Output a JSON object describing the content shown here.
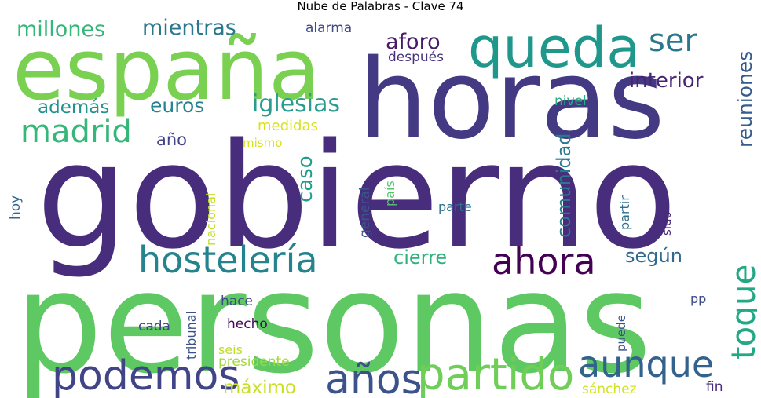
{
  "title": "Nube de Palabras - Clave 74",
  "words": [
    {
      "text": "gobierno",
      "color": "#472d7b"
    },
    {
      "text": "personas",
      "color": "#5ec962"
    },
    {
      "text": "horas",
      "color": "#443983"
    },
    {
      "text": "españa",
      "color": "#7ad151"
    },
    {
      "text": "queda",
      "color": "#1f988b"
    },
    {
      "text": "hostelería",
      "color": "#25838e"
    },
    {
      "text": "podemos",
      "color": "#414487"
    },
    {
      "text": "partido",
      "color": "#6ece58"
    },
    {
      "text": "años",
      "color": "#3b528b"
    },
    {
      "text": "aunque",
      "color": "#33638d"
    },
    {
      "text": "ahora",
      "color": "#440154"
    },
    {
      "text": "toque",
      "color": "#22a884"
    },
    {
      "text": "ser",
      "color": "#2a788e"
    },
    {
      "text": "madrid",
      "color": "#35b779"
    },
    {
      "text": "iglesias",
      "color": "#2a9d8f"
    },
    {
      "text": "interior",
      "color": "#482475"
    },
    {
      "text": "aforo",
      "color": "#481a6c"
    },
    {
      "text": "millones",
      "color": "#35b779"
    },
    {
      "text": "mientras",
      "color": "#2a788e"
    },
    {
      "text": "euros",
      "color": "#26828e"
    },
    {
      "text": "además",
      "color": "#21918c"
    },
    {
      "text": "cierre",
      "color": "#2db27d"
    },
    {
      "text": "según",
      "color": "#31688e"
    },
    {
      "text": "comunidad",
      "color": "#2a788e"
    },
    {
      "text": "reuniones",
      "color": "#365c8d"
    },
    {
      "text": "caso",
      "color": "#1f9e89"
    },
    {
      "text": "máximo",
      "color": "#c8e020"
    },
    {
      "text": "año",
      "color": "#414487"
    },
    {
      "text": "medidas",
      "color": "#d8e219"
    },
    {
      "text": "mismo",
      "color": "#d8e219"
    },
    {
      "text": "alarma",
      "color": "#3e4989"
    },
    {
      "text": "después",
      "color": "#46327e"
    },
    {
      "text": "nivel",
      "color": "#29af7f"
    },
    {
      "text": "hoy",
      "color": "#31688e"
    },
    {
      "text": "nacional",
      "color": "#c2df23"
    },
    {
      "text": "general",
      "color": "#39568c"
    },
    {
      "text": "país",
      "color": "#52c569"
    },
    {
      "text": "parte",
      "color": "#2c728e"
    },
    {
      "text": "partir",
      "color": "#2e6f8e"
    },
    {
      "text": "sido",
      "color": "#482878"
    },
    {
      "text": "tribunal",
      "color": "#3b528b"
    },
    {
      "text": "hace",
      "color": "#3e4a89"
    },
    {
      "text": "cada",
      "color": "#414487"
    },
    {
      "text": "hecho",
      "color": "#46085c"
    },
    {
      "text": "seis",
      "color": "#bddf26"
    },
    {
      "text": "presidente",
      "color": "#9fda3a"
    },
    {
      "text": "puede",
      "color": "#3b528b"
    },
    {
      "text": "pp",
      "color": "#3e4989"
    },
    {
      "text": "sánchez",
      "color": "#d2e21b"
    },
    {
      "text": "fin",
      "color": "#472a7a"
    }
  ]
}
